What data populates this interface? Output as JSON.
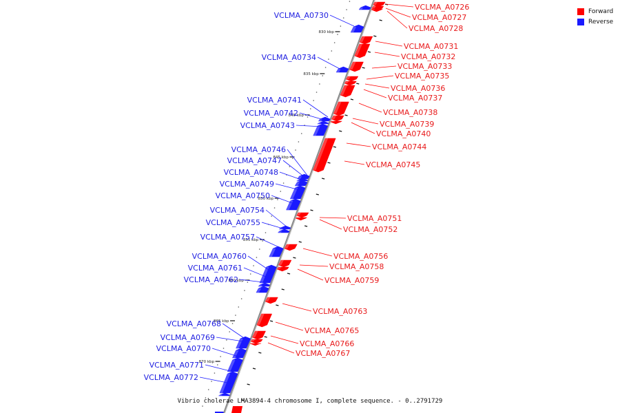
{
  "colors": {
    "forward": "#ff0000",
    "reverse": "#1a1aff",
    "axis": "#888888"
  },
  "legend": [
    {
      "label": "Forward",
      "color": "#ff0000"
    },
    {
      "label": "Reverse",
      "color": "#1a1aff"
    }
  ],
  "caption": "Vibrio cholerae LMA3894-4 chromosome I, complete sequence. - 0..2791729",
  "scale_labels": [
    "830 kbp",
    "835 kbp",
    "840 kbp",
    "845 kbp",
    "850 kbp",
    "855 kbp",
    "860 kbp",
    "865 kbp",
    "870 kbp"
  ],
  "forward_genes": [
    "VCLMA_A0726",
    "VCLMA_A0727",
    "VCLMA_A0728",
    "VCLMA_A0731",
    "VCLMA_A0732",
    "VCLMA_A0733",
    "VCLMA_A0735",
    "VCLMA_A0736",
    "VCLMA_A0737",
    "VCLMA_A0738",
    "VCLMA_A0739",
    "VCLMA_A0740",
    "VCLMA_A0744",
    "VCLMA_A0745",
    "VCLMA_A0751",
    "VCLMA_A0752",
    "VCLMA_A0756",
    "VCLMA_A0758",
    "VCLMA_A0759",
    "VCLMA_A0763",
    "VCLMA_A0765",
    "VCLMA_A0766",
    "VCLMA_A0767"
  ],
  "reverse_genes": [
    "VCLMA_A0730",
    "VCLMA_A0734",
    "VCLMA_A0741",
    "VCLMA_A0742",
    "VCLMA_A0743",
    "VCLMA_A0746",
    "VCLMA_A0747",
    "VCLMA_A0748",
    "VCLMA_A0749",
    "VCLMA_A0750",
    "VCLMA_A0754",
    "VCLMA_A0755",
    "VCLMA_A0757",
    "VCLMA_A0760",
    "VCLMA_A0761",
    "VCLMA_A0762",
    "VCLMA_A0768",
    "VCLMA_A0769",
    "VCLMA_A0770",
    "VCLMA_A0771",
    "VCLMA_A0772"
  ]
}
